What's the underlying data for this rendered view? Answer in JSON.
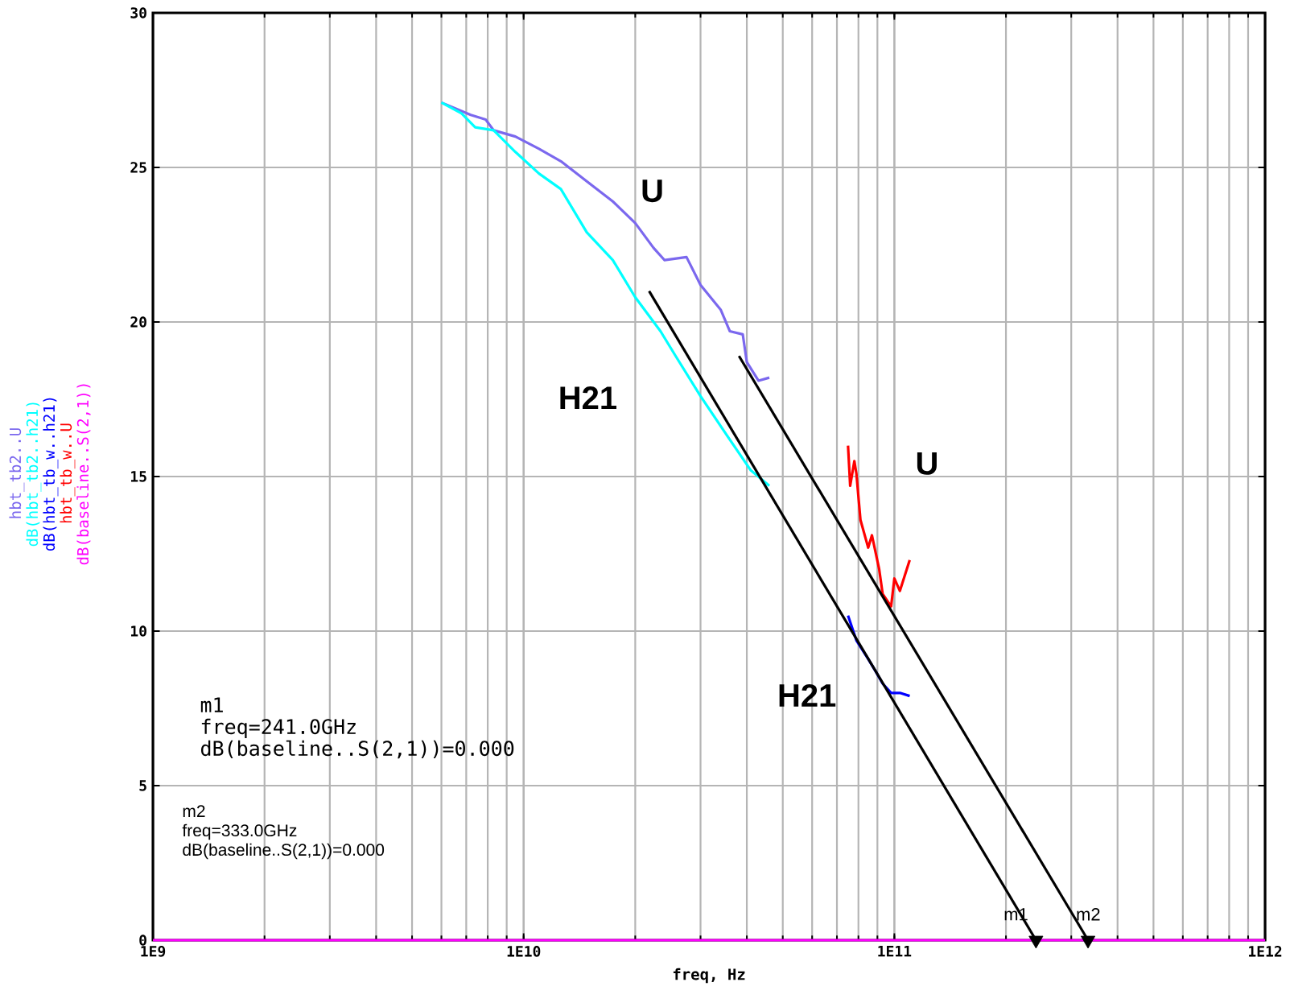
{
  "chart_data": {
    "type": "line",
    "xlabel": "freq, Hz",
    "log": "x",
    "grid": true,
    "legend": "left",
    "xlim": [
      1000000000.0,
      1000000000000.0
    ],
    "ylim": [
      0,
      30
    ],
    "xticks": [
      {
        "value": 1000000000.0,
        "label": "1E9"
      },
      {
        "value": 10000000000.0,
        "label": "1E10"
      },
      {
        "value": 100000000000.0,
        "label": "1E11"
      },
      {
        "value": 1000000000000.0,
        "label": "1E12"
      }
    ],
    "yticks": [
      0,
      5,
      10,
      15,
      20,
      25,
      30
    ],
    "series": [
      {
        "name": "hbt_tb2..U",
        "color": "#7b68ee",
        "x": [
          6000000000.0,
          7200000000.0,
          7900000000.0,
          8300000000.0,
          9500000000.0,
          11000000000.0,
          12600000000.0,
          14800000000.0,
          17400000000.0,
          20000000000.0,
          22400000000.0,
          24000000000.0,
          27500000000.0,
          30000000000.0,
          34000000000.0,
          36000000000.0,
          39000000000.0,
          40000000000.0,
          43000000000.0,
          46000000000.0
        ],
        "values": [
          27.1,
          26.7,
          26.55,
          26.2,
          26.0,
          25.6,
          25.2,
          24.55,
          23.9,
          23.2,
          22.4,
          22.0,
          22.1,
          21.2,
          20.4,
          19.7,
          19.6,
          18.7,
          18.1,
          18.2
        ]
      },
      {
        "name": "dB(hbt_tb2..h21)",
        "color": "#00ffff",
        "x": [
          6000000000.0,
          6800000000.0,
          7400000000.0,
          8300000000.0,
          9500000000.0,
          11000000000.0,
          12600000000.0,
          14800000000.0,
          17400000000.0,
          20000000000.0,
          23400000000.0,
          25700000000.0,
          30000000000.0,
          35500000000.0,
          41000000000.0,
          46000000000.0
        ],
        "values": [
          27.1,
          26.75,
          26.3,
          26.2,
          25.5,
          24.8,
          24.3,
          22.9,
          22.0,
          20.8,
          19.7,
          18.9,
          17.6,
          16.3,
          15.2,
          14.7
        ]
      },
      {
        "name": "dB(hbt_tb_w..h21)",
        "color": "#0000ff",
        "x": [
          75000000000.0,
          79000000000.0,
          85000000000.0,
          89000000000.0,
          93000000000.0,
          98000000000.0,
          103500000000.0,
          110000000000.0
        ],
        "values": [
          10.5,
          9.7,
          9.1,
          8.7,
          8.3,
          8.0,
          8.0,
          7.9
        ]
      },
      {
        "name": "hbt_tb_w..U",
        "color": "#ff0000",
        "x": [
          75000000000.0,
          76000000000.0,
          78000000000.0,
          79000000000.0,
          81000000000.0,
          85000000000.0,
          87000000000.0,
          91000000000.0,
          93000000000.0,
          98000000000.0,
          100000000000.0,
          103500000000.0,
          110000000000.0
        ],
        "values": [
          16.0,
          14.7,
          15.5,
          15.1,
          13.6,
          12.7,
          13.1,
          12.0,
          11.2,
          10.8,
          11.7,
          11.3,
          12.3
        ]
      },
      {
        "name": "dB(baseline..S(2,1))",
        "color": "#ff00ff",
        "x": [
          1000000000.0,
          1000000000000.0
        ],
        "values": [
          0,
          0
        ]
      },
      {
        "color": "#000000",
        "x": [
          21800000000.0,
          241000000000.0
        ],
        "values": [
          21.0,
          0
        ]
      },
      {
        "color": "#000000",
        "x": [
          38100000000.0,
          333000000000.0
        ],
        "values": [
          18.9,
          0
        ]
      },
      {
        "type": "scatter",
        "marker": "triangle",
        "color": "#000000",
        "x": [
          241000000000.0,
          333000000000.0
        ],
        "values": [
          0,
          0
        ]
      }
    ],
    "annotations": [
      "U",
      "H21",
      "U",
      "H21",
      "m1",
      "m2",
      "m1",
      "freq=241.0GHz",
      "dB(baseline..S(2,1))=0.000",
      "m2",
      "freq=333.0GHz",
      "dB(baseline..S(2,1))=0.000"
    ]
  }
}
